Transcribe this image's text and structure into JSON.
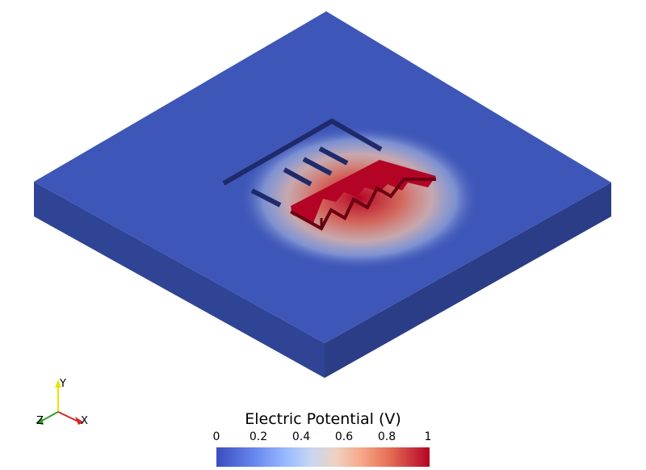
{
  "colorbar": {
    "title": "Electric Potential (V)",
    "ticks": [
      "0",
      "0.2",
      "0.4",
      "0.6",
      "0.8",
      "1"
    ],
    "range": [
      0,
      1
    ],
    "colors": [
      "#3b4cc0",
      "#9abbff",
      "#dddddd",
      "#f7a889",
      "#b40426"
    ]
  },
  "orientation_axes": {
    "x_label": "X",
    "y_label": "Y",
    "z_label": "Z",
    "x_color": "#d62728",
    "y_color": "#e6e600",
    "z_color": "#2ca02c"
  },
  "scene": {
    "plate_top_color": "#3d56b8",
    "plate_left_color": "#2f4494",
    "plate_right_color": "#2a3d86",
    "electrode_color": "#b40426"
  }
}
